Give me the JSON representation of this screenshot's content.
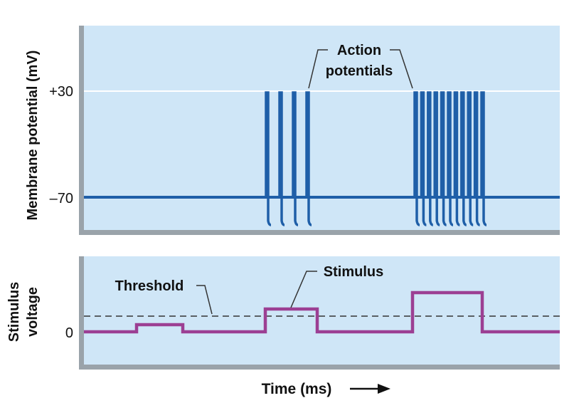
{
  "labels": {
    "top_y_axis": "Membrane potential (mV)",
    "bottom_y_axis_line1": "Stimulus",
    "bottom_y_axis_line2": "voltage",
    "tick_plus30": "+30",
    "tick_minus70": "–70",
    "tick_zero": "0",
    "x_axis": "Time (ms)",
    "action_potentials_line1": "Action",
    "action_potentials_line2": "potentials",
    "threshold": "Threshold",
    "stimulus": "Stimulus"
  },
  "colors": {
    "panel_bg": "#cfe6f7",
    "panel_border": "#9aa3aa",
    "membrane_trace": "#1f5fa8",
    "stimulus_trace": "#9c3f93",
    "threshold_line": "#333333",
    "reference_line": "#ffffff"
  },
  "axis_ticks": {
    "membrane_mV": [
      30,
      -70
    ],
    "stimulus": [
      0
    ]
  },
  "spike_bursts": [
    {
      "count": 4
    },
    {
      "count": 11
    }
  ],
  "stimulus_pulses": [
    {
      "level": "below threshold",
      "relative_height": 0.45
    },
    {
      "level": "above threshold",
      "relative_height": 1.45
    },
    {
      "level": "well above threshold",
      "relative_height": 2.55
    }
  ]
}
